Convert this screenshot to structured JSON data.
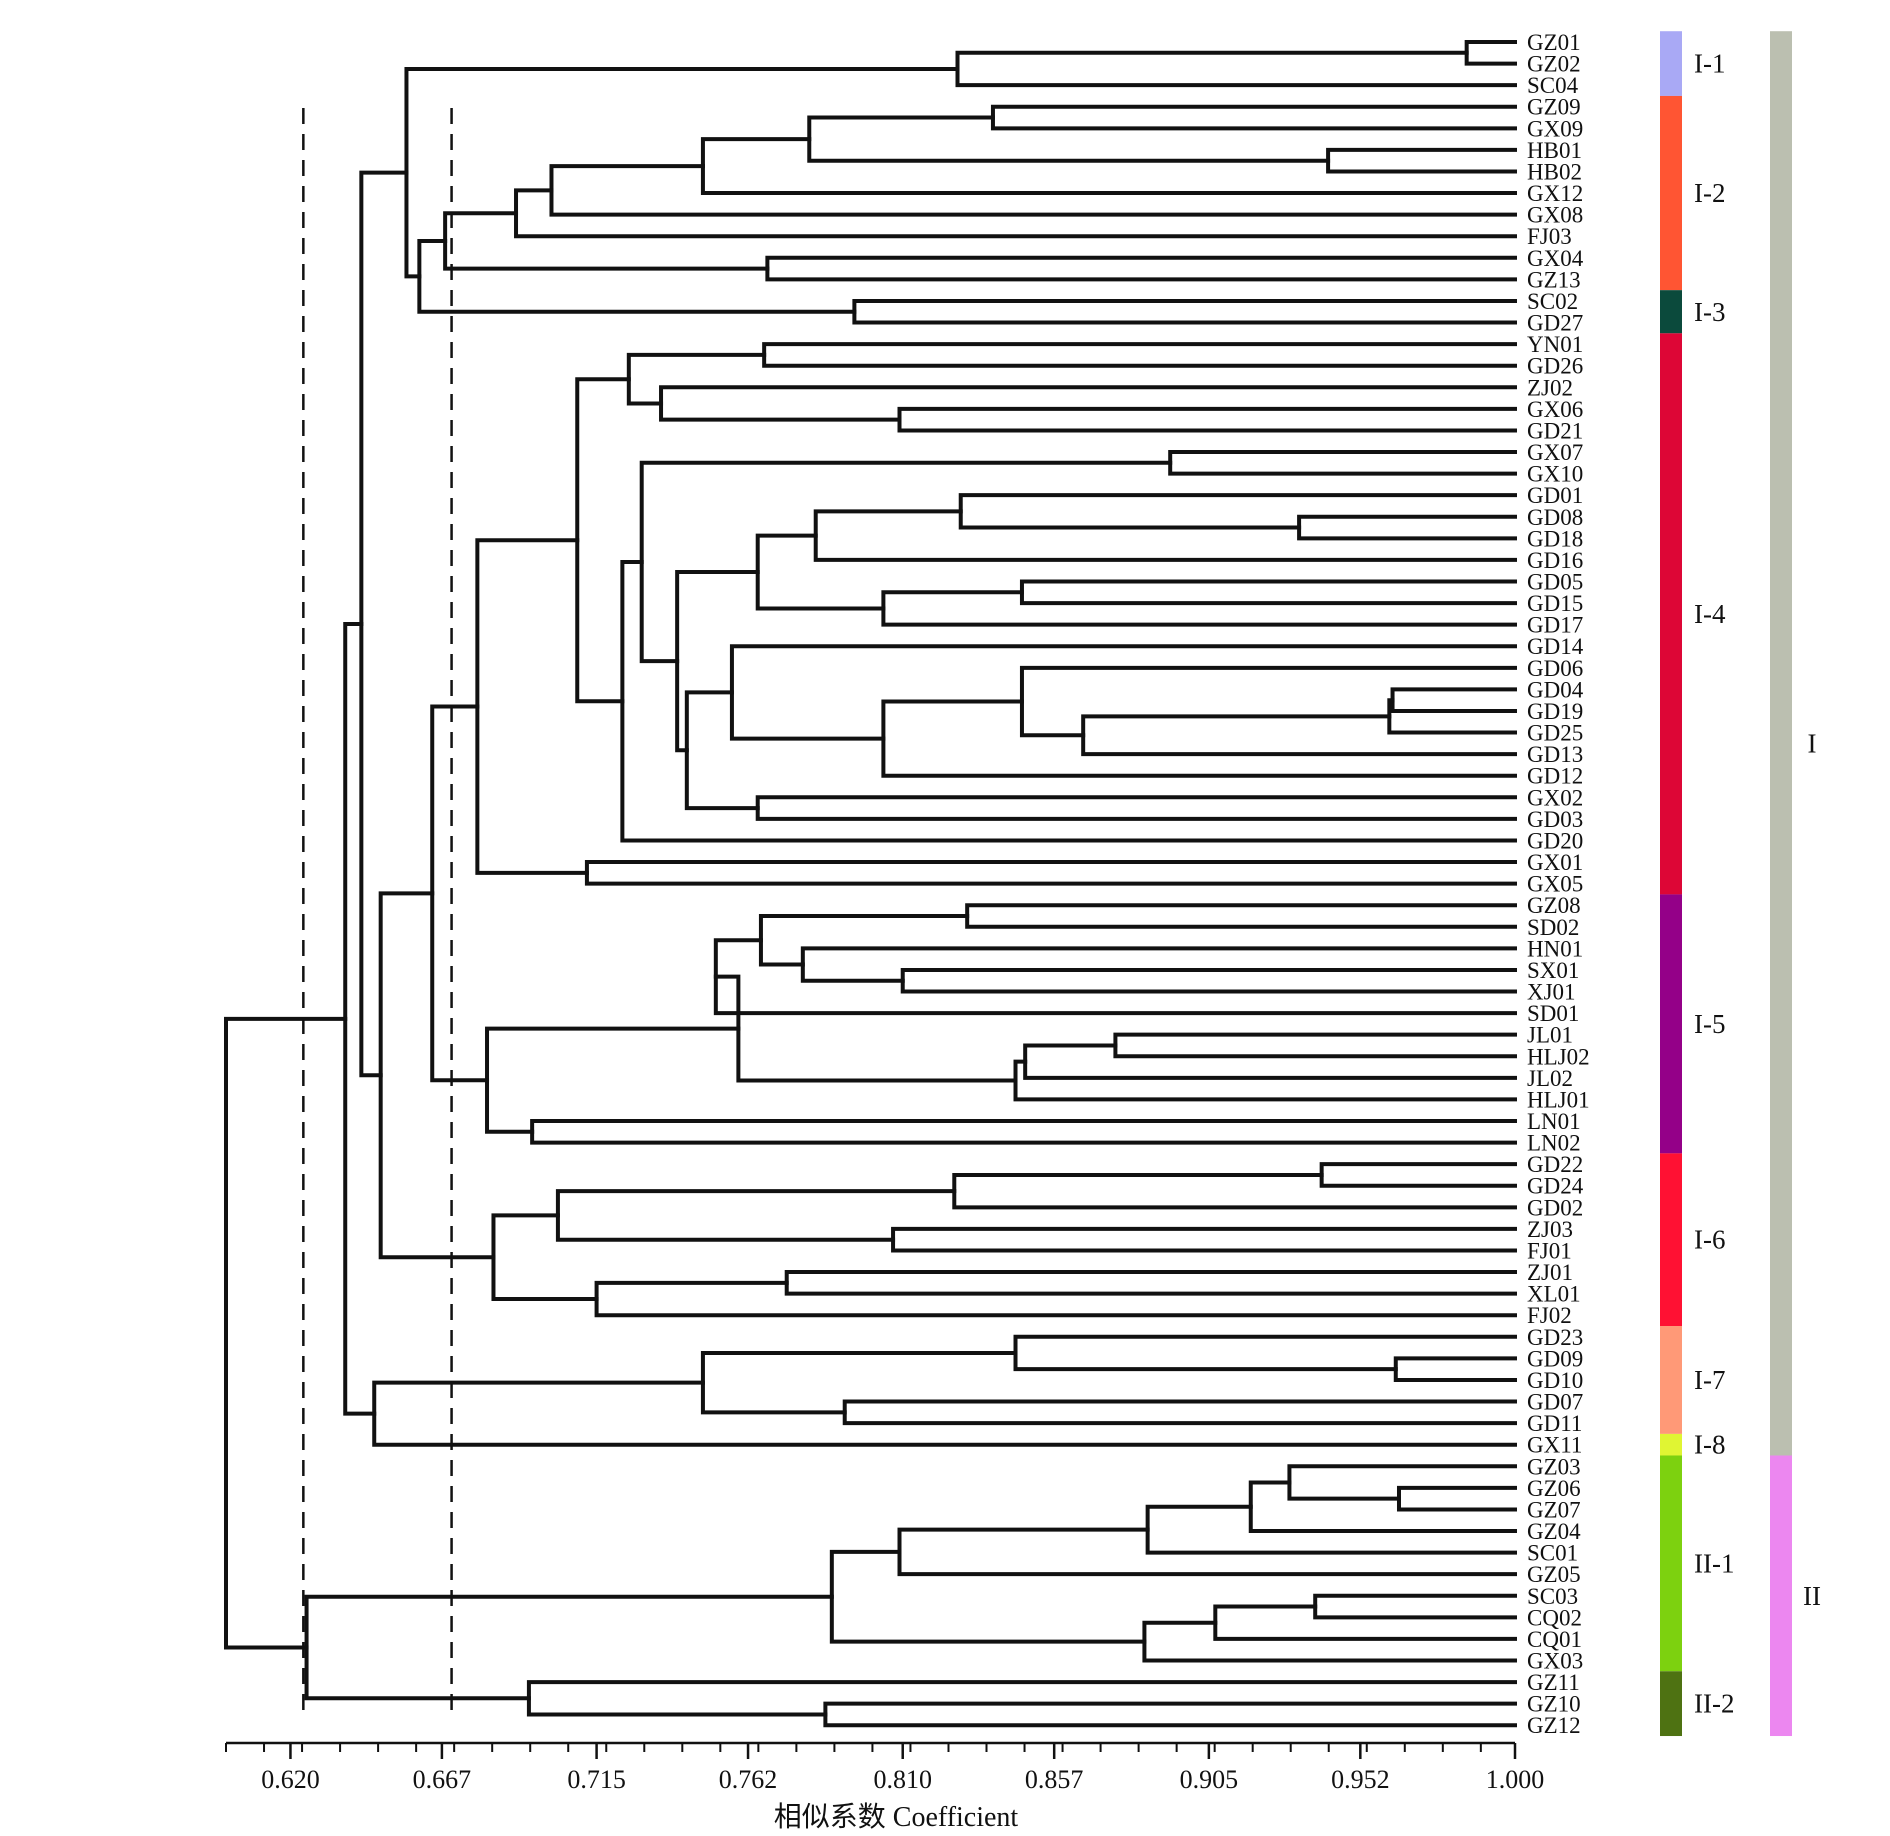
{
  "leaves": [
    "GZ01",
    "GZ02",
    "SC04",
    "GZ09",
    "GX09",
    "HB01",
    "HB02",
    "GX12",
    "GX08",
    "FJ03",
    "GX04",
    "GZ13",
    "SC02",
    "GD27",
    "YN01",
    "GD26",
    "ZJ02",
    "GX06",
    "GD21",
    "GX07",
    "GX10",
    "GD01",
    "GD08",
    "GD18",
    "GD16",
    "GD05",
    "GD15",
    "GD17",
    "GD14",
    "GD06",
    "GD04",
    "GD19",
    "GD25",
    "GD13",
    "GD12",
    "GX02",
    "GD03",
    "GD20",
    "GX01",
    "GX05",
    "GZ08",
    "SD02",
    "HN01",
    "SX01",
    "XJ01",
    "SD01",
    "JL01",
    "HLJ02",
    "JL02",
    "HLJ01",
    "LN01",
    "LN02",
    "GD22",
    "GD24",
    "GD02",
    "ZJ03",
    "FJ01",
    "ZJ01",
    "XL01",
    "FJ02",
    "GD23",
    "GD09",
    "GD10",
    "GD07",
    "GD11",
    "GX11",
    "GZ03",
    "GZ06",
    "GZ07",
    "GZ04",
    "SC01",
    "GZ05",
    "SC03",
    "CQ02",
    "CQ01",
    "GX03",
    "GZ11",
    "GZ10",
    "GZ12"
  ],
  "merges": [
    {
      "a": "GZ01",
      "b": "GZ02",
      "sim": 0.985,
      "id": "m1"
    },
    {
      "a": "m1",
      "b": "SC04",
      "sim": 0.827,
      "id": "m2"
    },
    {
      "a": "GZ09",
      "b": "GX09",
      "sim": 0.838,
      "id": "m3"
    },
    {
      "a": "HB01",
      "b": "HB02",
      "sim": 0.942,
      "id": "m4"
    },
    {
      "a": "m3",
      "b": "m4",
      "sim": 0.781,
      "id": "m5"
    },
    {
      "a": "m5",
      "b": "GX12",
      "sim": 0.748,
      "id": "m6"
    },
    {
      "a": "m6",
      "b": "GX08",
      "sim": 0.701,
      "id": "m7"
    },
    {
      "a": "m7",
      "b": "FJ03",
      "sim": 0.69,
      "id": "m8"
    },
    {
      "a": "GX04",
      "b": "GZ13",
      "sim": 0.768,
      "id": "m9"
    },
    {
      "a": "m8",
      "b": "m9",
      "sim": 0.668,
      "id": "m10"
    },
    {
      "a": "SC02",
      "b": "GD27",
      "sim": 0.795,
      "id": "m11"
    },
    {
      "a": "m10",
      "b": "m11",
      "sim": 0.66,
      "id": "m12"
    },
    {
      "a": "m2",
      "b": "m12",
      "sim": 0.656,
      "id": "m13"
    },
    {
      "a": "YN01",
      "b": "GD26",
      "sim": 0.767,
      "id": "m14"
    },
    {
      "a": "GX06",
      "b": "GD21",
      "sim": 0.809,
      "id": "m15"
    },
    {
      "a": "ZJ02",
      "b": "m15",
      "sim": 0.735,
      "id": "m16"
    },
    {
      "a": "m14",
      "b": "m16",
      "sim": 0.725,
      "id": "m17"
    },
    {
      "a": "GX07",
      "b": "GX10",
      "sim": 0.893,
      "id": "m18"
    },
    {
      "a": "GD08",
      "b": "GD18",
      "sim": 0.933,
      "id": "m19"
    },
    {
      "a": "GD01",
      "b": "m19",
      "sim": 0.828,
      "id": "m20"
    },
    {
      "a": "m20",
      "b": "GD16",
      "sim": 0.783,
      "id": "m21"
    },
    {
      "a": "GD05",
      "b": "GD15",
      "sim": 0.847,
      "id": "m22"
    },
    {
      "a": "m22",
      "b": "GD17",
      "sim": 0.804,
      "id": "m23"
    },
    {
      "a": "m21",
      "b": "m23",
      "sim": 0.765,
      "id": "m24"
    },
    {
      "a": "GD04",
      "b": "GD19",
      "sim": 0.962,
      "id": "m25"
    },
    {
      "a": "m25",
      "b": "GD25",
      "sim": 0.961,
      "id": "m26"
    },
    {
      "a": "m26",
      "b": "GD13",
      "sim": 0.866,
      "id": "m27"
    },
    {
      "a": "GD06",
      "b": "m27",
      "sim": 0.847,
      "id": "m28"
    },
    {
      "a": "m28",
      "b": "GD12",
      "sim": 0.804,
      "id": "m29"
    },
    {
      "a": "GD14",
      "b": "m29",
      "sim": 0.757,
      "id": "m30"
    },
    {
      "a": "GX02",
      "b": "GD03",
      "sim": 0.765,
      "id": "m31"
    },
    {
      "a": "m30",
      "b": "m31",
      "sim": 0.743,
      "id": "m32"
    },
    {
      "a": "m24",
      "b": "m32",
      "sim": 0.74,
      "id": "m33"
    },
    {
      "a": "m18",
      "b": "m33",
      "sim": 0.729,
      "id": "m34"
    },
    {
      "a": "m34",
      "b": "GD20",
      "sim": 0.723,
      "id": "m35"
    },
    {
      "a": "m17",
      "b": "m35",
      "sim": 0.709,
      "id": "m36"
    },
    {
      "a": "GX01",
      "b": "GX05",
      "sim": 0.712,
      "id": "m37"
    },
    {
      "a": "m36",
      "b": "m37",
      "sim": 0.678,
      "id": "m38"
    },
    {
      "a": "GZ08",
      "b": "SD02",
      "sim": 0.83,
      "id": "m39"
    },
    {
      "a": "SX01",
      "b": "XJ01",
      "sim": 0.81,
      "id": "m40"
    },
    {
      "a": "HN01",
      "b": "m40",
      "sim": 0.779,
      "id": "m41"
    },
    {
      "a": "m39",
      "b": "m41",
      "sim": 0.766,
      "id": "m42"
    },
    {
      "a": "m42",
      "b": "SD01",
      "sim": 0.752,
      "id": "m43"
    },
    {
      "a": "JL01",
      "b": "HLJ02",
      "sim": 0.876,
      "id": "m44"
    },
    {
      "a": "m44",
      "b": "JL02",
      "sim": 0.848,
      "id": "m45"
    },
    {
      "a": "m45",
      "b": "HLJ01",
      "sim": 0.845,
      "id": "m46"
    },
    {
      "a": "m43",
      "b": "m46",
      "sim": 0.759,
      "id": "m47"
    },
    {
      "a": "LN01",
      "b": "LN02",
      "sim": 0.695,
      "id": "m48"
    },
    {
      "a": "m47",
      "b": "m48",
      "sim": 0.681,
      "id": "m49"
    },
    {
      "a": "m38",
      "b": "m49",
      "sim": 0.664,
      "id": "m50"
    },
    {
      "a": "GD22",
      "b": "GD24",
      "sim": 0.94,
      "id": "m51"
    },
    {
      "a": "m51",
      "b": "GD02",
      "sim": 0.826,
      "id": "m52"
    },
    {
      "a": "ZJ03",
      "b": "FJ01",
      "sim": 0.807,
      "id": "m53"
    },
    {
      "a": "m52",
      "b": "m53",
      "sim": 0.703,
      "id": "m54"
    },
    {
      "a": "ZJ01",
      "b": "XL01",
      "sim": 0.774,
      "id": "m55"
    },
    {
      "a": "m55",
      "b": "FJ02",
      "sim": 0.715,
      "id": "m56"
    },
    {
      "a": "m54",
      "b": "m56",
      "sim": 0.683,
      "id": "m57"
    },
    {
      "a": "m50",
      "b": "m57",
      "sim": 0.648,
      "id": "m58"
    },
    {
      "a": "m13",
      "b": "m58",
      "sim": 0.642,
      "id": "m59"
    },
    {
      "a": "GD09",
      "b": "GD10",
      "sim": 0.963,
      "id": "m60"
    },
    {
      "a": "GD23",
      "b": "m60",
      "sim": 0.845,
      "id": "m61"
    },
    {
      "a": "GD07",
      "b": "GD11",
      "sim": 0.792,
      "id": "m62"
    },
    {
      "a": "m61",
      "b": "m62",
      "sim": 0.748,
      "id": "m63"
    },
    {
      "a": "m63",
      "b": "GX11",
      "sim": 0.646,
      "id": "m64"
    },
    {
      "a": "m59",
      "b": "m64",
      "sim": 0.637,
      "id": "m65"
    },
    {
      "a": "GZ06",
      "b": "GZ07",
      "sim": 0.964,
      "id": "m66"
    },
    {
      "a": "GZ03",
      "b": "m66",
      "sim": 0.93,
      "id": "m67"
    },
    {
      "a": "m67",
      "b": "GZ04",
      "sim": 0.918,
      "id": "m68"
    },
    {
      "a": "m68",
      "b": "SC01",
      "sim": 0.886,
      "id": "m69"
    },
    {
      "a": "m69",
      "b": "GZ05",
      "sim": 0.809,
      "id": "m70"
    },
    {
      "a": "SC03",
      "b": "CQ02",
      "sim": 0.938,
      "id": "m71"
    },
    {
      "a": "m71",
      "b": "CQ01",
      "sim": 0.907,
      "id": "m72"
    },
    {
      "a": "m72",
      "b": "GX03",
      "sim": 0.885,
      "id": "m73"
    },
    {
      "a": "m70",
      "b": "m73",
      "sim": 0.788,
      "id": "m74"
    },
    {
      "a": "GZ10",
      "b": "GZ12",
      "sim": 0.786,
      "id": "m75"
    },
    {
      "a": "GZ11",
      "b": "m75",
      "sim": 0.694,
      "id": "m76"
    },
    {
      "a": "m74",
      "b": "m76",
      "sim": 0.625,
      "id": "m77"
    },
    {
      "a": "m65",
      "b": "m77",
      "sim": 0.6,
      "id": "m78"
    }
  ],
  "axis": {
    "min": 0.6,
    "max": 1.0,
    "ticks": [
      0.62,
      0.667,
      0.715,
      0.762,
      0.81,
      0.857,
      0.905,
      0.952,
      1.0
    ],
    "tick_labels": [
      "0.620",
      "0.667",
      "0.715",
      "0.762",
      "0.810",
      "0.857",
      "0.905",
      "0.952",
      "1.000"
    ],
    "minor_step": 0.0118,
    "title": "相似系数 Coefficient"
  },
  "cut_lines": [
    0.624,
    0.67
  ],
  "subgroups": [
    {
      "label": "I-1",
      "first": "GZ01",
      "last": "SC04",
      "color": "#a9a9f5"
    },
    {
      "label": "I-2",
      "first": "GZ09",
      "last": "GZ13",
      "color": "#ff5533"
    },
    {
      "label": "I-3",
      "first": "SC02",
      "last": "GD27",
      "color": "#0b4a3c"
    },
    {
      "label": "I-4",
      "first": "YN01",
      "last": "GX05",
      "color": "#dd0636"
    },
    {
      "label": "I-5",
      "first": "GZ08",
      "last": "LN02",
      "color": "#940088"
    },
    {
      "label": "I-6",
      "first": "GD22",
      "last": "FJ02",
      "color": "#ff1133"
    },
    {
      "label": "I-7",
      "first": "GD23",
      "last": "GD11",
      "color": "#ff9977"
    },
    {
      "label": "I-8",
      "first": "GX11",
      "last": "GX11",
      "color": "#e0f533"
    },
    {
      "label": "II-1",
      "first": "GZ03",
      "last": "GX03",
      "color": "#7dd10f"
    },
    {
      "label": "II-2",
      "first": "GZ11",
      "last": "GZ12",
      "color": "#4e7212"
    }
  ],
  "groups": [
    {
      "label": "I",
      "first": "GZ01",
      "last": "GX11",
      "color": "#bbbfb0"
    },
    {
      "label": "II",
      "first": "GZ03",
      "last": "GZ12",
      "color": "#ec87f0"
    }
  ]
}
